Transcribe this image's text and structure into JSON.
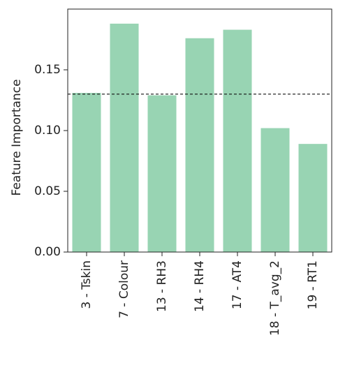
{
  "chart_data": {
    "type": "bar",
    "y_label": "Feature Importance",
    "categories": [
      "3 - Tskin",
      "7 - Colour",
      "13 - RH3",
      "14 - RH4",
      "17 - AT4",
      "18 - T_avg_2",
      "19 - RT1"
    ],
    "values": [
      0.131,
      0.188,
      0.129,
      0.176,
      0.183,
      0.102,
      0.089
    ],
    "color": "#98d4b3",
    "ylim": [
      0,
      0.2
    ],
    "yticks": [
      {
        "value": 0,
        "label": "0.00"
      },
      0.05,
      {
        "value": 0.1,
        "label": "0.10"
      },
      0.15
    ],
    "reference_line": 0.13
  }
}
